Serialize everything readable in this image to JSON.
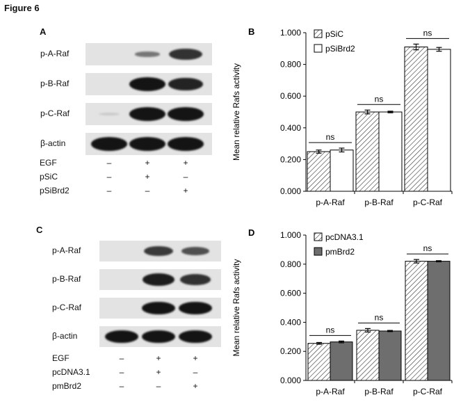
{
  "figure_title": "Figure 6",
  "panels": {
    "A": {
      "letter": "A",
      "blots": [
        {
          "label": "p-A-Raf",
          "bands": [
            0,
            0.35,
            0.8
          ]
        },
        {
          "label": "p-B-Raf",
          "bands": [
            0,
            1,
            0.9
          ]
        },
        {
          "label": "p-C-Raf",
          "bands": [
            0.1,
            1,
            1
          ]
        },
        {
          "label": "β-actin",
          "bands": [
            1,
            1,
            1
          ]
        }
      ],
      "conditions": [
        {
          "label": "EGF",
          "signs": [
            "–",
            "+",
            "+"
          ]
        },
        {
          "label": "pSiC",
          "signs": [
            "–",
            "+",
            "–"
          ]
        },
        {
          "label": "pSiBrd2",
          "signs": [
            "–",
            "–",
            "+"
          ]
        }
      ]
    },
    "C": {
      "letter": "C",
      "blots": [
        {
          "label": "p-A-Raf",
          "bands": [
            0,
            0.75,
            0.6
          ]
        },
        {
          "label": "p-B-Raf",
          "bands": [
            0,
            0.95,
            0.8
          ]
        },
        {
          "label": "p-C-Raf",
          "bands": [
            0,
            1,
            1
          ]
        },
        {
          "label": "β-actin",
          "bands": [
            1,
            1,
            1
          ]
        }
      ],
      "conditions": [
        {
          "label": "EGF",
          "signs": [
            "–",
            "+",
            "+"
          ]
        },
        {
          "label": "pcDNA3.1",
          "signs": [
            "–",
            "+",
            "–"
          ]
        },
        {
          "label": "pmBrd2",
          "signs": [
            "–",
            "–",
            "+"
          ]
        }
      ]
    }
  },
  "chart_data": [
    {
      "panel": "B",
      "type": "bar",
      "categories": [
        "p-A-Raf",
        "p-B-Raf",
        "p-C-Raf"
      ],
      "ylabel": "Mean relative Rafs activity",
      "ylim": [
        0,
        1
      ],
      "yticks": [
        "0.000",
        "0.200",
        "0.400",
        "0.600",
        "0.800",
        "1.000"
      ],
      "legend_position": "top-left",
      "significance": [
        "ns",
        "ns",
        "ns"
      ],
      "series": [
        {
          "name": "pSiC",
          "values": [
            0.25,
            0.5,
            0.91
          ],
          "errors": [
            0.01,
            0.012,
            0.018
          ],
          "fill": "hatch",
          "color": "#ffffff"
        },
        {
          "name": "pSiBrd2",
          "values": [
            0.26,
            0.5,
            0.895
          ],
          "errors": [
            0.012,
            0.005,
            0.012
          ],
          "fill": "solid",
          "color": "#ffffff"
        }
      ]
    },
    {
      "panel": "D",
      "type": "bar",
      "categories": [
        "p-A-Raf",
        "p-B-Raf",
        "p-C-Raf"
      ],
      "ylabel": "Mean relative Rafs activity",
      "ylim": [
        0,
        1
      ],
      "yticks": [
        "0.000",
        "0.200",
        "0.400",
        "0.600",
        "0.800",
        "1.000"
      ],
      "legend_position": "top-left",
      "significance": [
        "ns",
        "ns",
        "ns"
      ],
      "series": [
        {
          "name": "pcDNA3.1",
          "values": [
            0.255,
            0.345,
            0.82
          ],
          "errors": [
            0.006,
            0.012,
            0.012
          ],
          "fill": "hatch",
          "color": "#ffffff"
        },
        {
          "name": "pmBrd2",
          "values": [
            0.265,
            0.34,
            0.82
          ],
          "errors": [
            0.006,
            0.004,
            0.004
          ],
          "fill": "solid",
          "color": "#6e6e6e"
        }
      ]
    }
  ]
}
